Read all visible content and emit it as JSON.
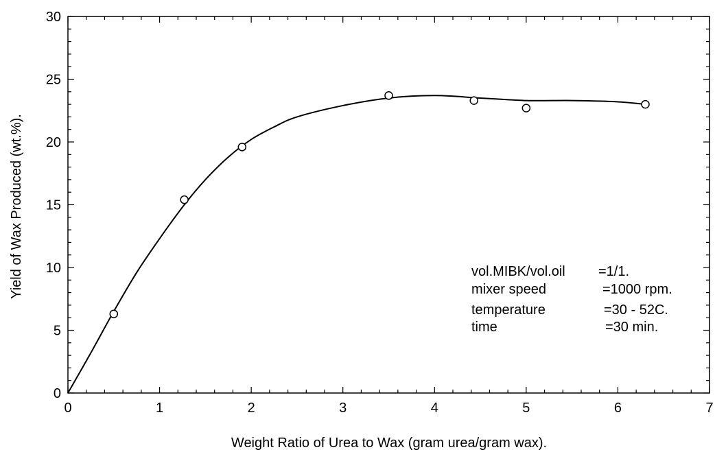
{
  "chart_data": {
    "type": "scatter",
    "xlabel": "Weight Ratio of Urea to Wax (gram urea/gram wax).",
    "ylabel": "Yield of Wax Produced (wt.%).",
    "xlim": [
      0,
      7
    ],
    "ylim": [
      0,
      30
    ],
    "x_ticks": [
      0,
      1,
      2,
      3,
      4,
      5,
      6,
      7
    ],
    "y_ticks": [
      0,
      5,
      10,
      15,
      20,
      25,
      30
    ],
    "grid": false,
    "series": [
      {
        "kind": "points",
        "marker": "open-circle",
        "points": [
          {
            "x": 0.5,
            "y": 6.3
          },
          {
            "x": 1.27,
            "y": 15.4
          },
          {
            "x": 1.9,
            "y": 19.6
          },
          {
            "x": 3.5,
            "y": 23.7
          },
          {
            "x": 4.43,
            "y": 23.3
          },
          {
            "x": 5.0,
            "y": 22.7
          },
          {
            "x": 6.3,
            "y": 23.0
          }
        ]
      },
      {
        "kind": "fitted-curve",
        "points": [
          {
            "x": 0.0,
            "y": 0.0
          },
          {
            "x": 0.25,
            "y": 3.2
          },
          {
            "x": 0.5,
            "y": 6.5
          },
          {
            "x": 0.75,
            "y": 9.6
          },
          {
            "x": 1.0,
            "y": 12.3
          },
          {
            "x": 1.27,
            "y": 15.0
          },
          {
            "x": 1.5,
            "y": 17.0
          },
          {
            "x": 1.75,
            "y": 18.8
          },
          {
            "x": 2.0,
            "y": 20.2
          },
          {
            "x": 2.25,
            "y": 21.2
          },
          {
            "x": 2.5,
            "y": 22.0
          },
          {
            "x": 3.0,
            "y": 22.9
          },
          {
            "x": 3.5,
            "y": 23.5
          },
          {
            "x": 4.0,
            "y": 23.7
          },
          {
            "x": 4.5,
            "y": 23.5
          },
          {
            "x": 5.0,
            "y": 23.3
          },
          {
            "x": 5.5,
            "y": 23.3
          },
          {
            "x": 6.0,
            "y": 23.2
          },
          {
            "x": 6.3,
            "y": 23.0
          }
        ]
      }
    ],
    "annotations": [
      {
        "label": "vol.MIBK/vol.oil",
        "value": "=1/1."
      },
      {
        "label": "mixer speed",
        "value": "=1000 rpm."
      },
      {
        "label": "temperature",
        "value": "=30 - 52C."
      },
      {
        "label": "time",
        "value": "=30 min."
      }
    ]
  }
}
